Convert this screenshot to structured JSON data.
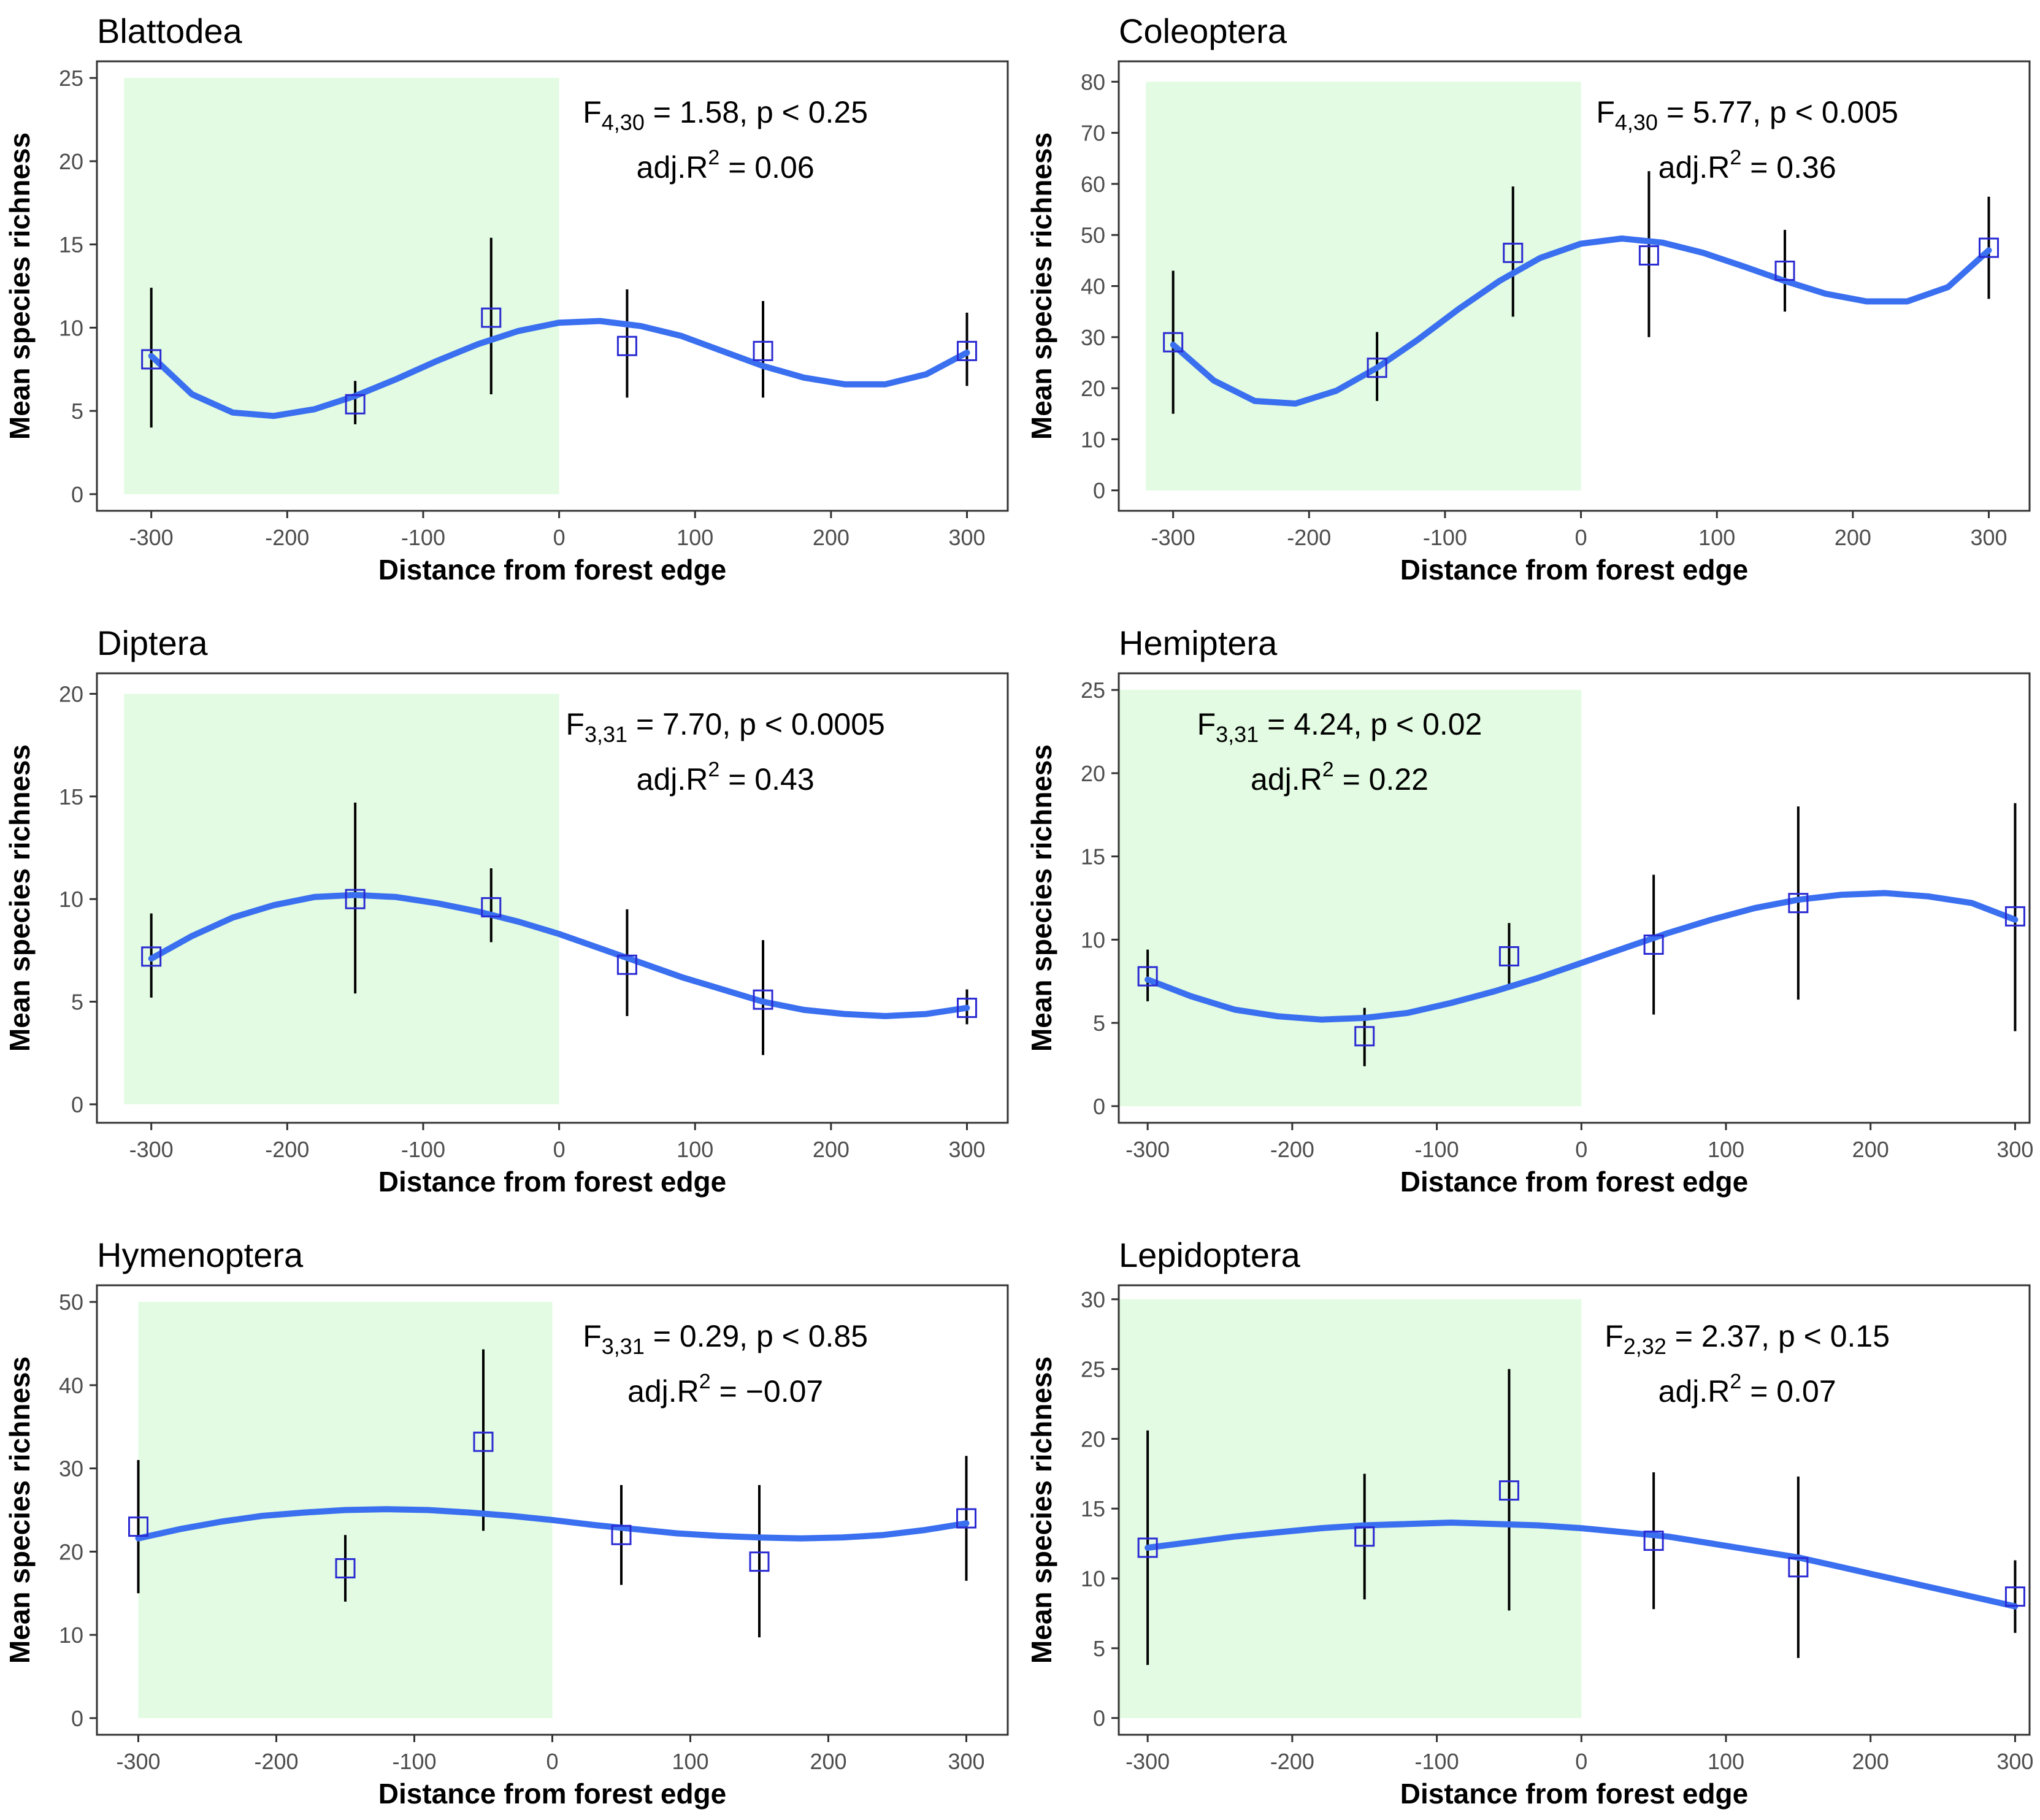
{
  "figure": {
    "x_label": "Distance from forest edge",
    "y_label": "Mean species richness"
  },
  "chart_data": [
    {
      "type": "scatter",
      "title": "Blattodea",
      "xlabel": "Distance from forest edge",
      "ylabel": "Mean species richness",
      "xlim": [
        -340,
        330
      ],
      "ylim": [
        -1,
        26
      ],
      "x_ticks": [
        -300,
        -200,
        -100,
        0,
        100,
        200,
        300
      ],
      "y_ticks": [
        0,
        5,
        10,
        15,
        20,
        25
      ],
      "shade_x": [
        -320,
        0
      ],
      "shade_y": [
        0,
        25
      ],
      "points": [
        {
          "x": -300,
          "y": 8.1,
          "lo": 4.0,
          "hi": 12.4
        },
        {
          "x": -150,
          "y": 5.4,
          "lo": 4.2,
          "hi": 6.8
        },
        {
          "x": -50,
          "y": 10.6,
          "lo": 6.0,
          "hi": 15.4
        },
        {
          "x": 50,
          "y": 8.9,
          "lo": 5.8,
          "hi": 12.3
        },
        {
          "x": 150,
          "y": 8.6,
          "lo": 5.8,
          "hi": 11.6
        },
        {
          "x": 300,
          "y": 8.6,
          "lo": 6.5,
          "hi": 10.9
        }
      ],
      "fit": [
        {
          "x": -300,
          "y": 8.3
        },
        {
          "x": -270,
          "y": 6.0
        },
        {
          "x": -240,
          "y": 4.9
        },
        {
          "x": -210,
          "y": 4.7
        },
        {
          "x": -180,
          "y": 5.1
        },
        {
          "x": -150,
          "y": 5.9
        },
        {
          "x": -120,
          "y": 6.9
        },
        {
          "x": -90,
          "y": 8.0
        },
        {
          "x": -60,
          "y": 9.0
        },
        {
          "x": -30,
          "y": 9.8
        },
        {
          "x": 0,
          "y": 10.3
        },
        {
          "x": 30,
          "y": 10.4
        },
        {
          "x": 60,
          "y": 10.1
        },
        {
          "x": 90,
          "y": 9.5
        },
        {
          "x": 120,
          "y": 8.6
        },
        {
          "x": 150,
          "y": 7.7
        },
        {
          "x": 180,
          "y": 7.0
        },
        {
          "x": 210,
          "y": 6.6
        },
        {
          "x": 240,
          "y": 6.6
        },
        {
          "x": 270,
          "y": 7.2
        },
        {
          "x": 300,
          "y": 8.5
        }
      ],
      "stat_line1": {
        "pre": "F",
        "sub": "4,30",
        "post": " = 1.58, p < 0.25"
      },
      "stat_line2": {
        "pre": "adj.R",
        "sup": "2",
        "post": " = 0.06"
      }
    },
    {
      "type": "scatter",
      "title": "Coleoptera",
      "xlabel": "Distance from forest edge",
      "ylabel": "Mean species richness",
      "xlim": [
        -340,
        330
      ],
      "ylim": [
        -4,
        84
      ],
      "x_ticks": [
        -300,
        -200,
        -100,
        0,
        100,
        200,
        300
      ],
      "y_ticks": [
        0,
        10,
        20,
        30,
        40,
        50,
        60,
        70,
        80
      ],
      "shade_x": [
        -320,
        0
      ],
      "shade_y": [
        0,
        80
      ],
      "points": [
        {
          "x": -300,
          "y": 29,
          "lo": 15,
          "hi": 43
        },
        {
          "x": -150,
          "y": 24,
          "lo": 17.5,
          "hi": 31
        },
        {
          "x": -50,
          "y": 46.5,
          "lo": 34,
          "hi": 59.5
        },
        {
          "x": 50,
          "y": 46,
          "lo": 30,
          "hi": 62.5
        },
        {
          "x": 150,
          "y": 43,
          "lo": 35,
          "hi": 51
        },
        {
          "x": 300,
          "y": 47.5,
          "lo": 37.5,
          "hi": 57.5
        }
      ],
      "fit": [
        {
          "x": -300,
          "y": 28.5
        },
        {
          "x": -270,
          "y": 21.5
        },
        {
          "x": -240,
          "y": 17.5
        },
        {
          "x": -210,
          "y": 17.0
        },
        {
          "x": -180,
          "y": 19.5
        },
        {
          "x": -150,
          "y": 24.0
        },
        {
          "x": -120,
          "y": 29.5
        },
        {
          "x": -90,
          "y": 35.5
        },
        {
          "x": -60,
          "y": 41.0
        },
        {
          "x": -30,
          "y": 45.5
        },
        {
          "x": 0,
          "y": 48.3
        },
        {
          "x": 30,
          "y": 49.3
        },
        {
          "x": 60,
          "y": 48.5
        },
        {
          "x": 90,
          "y": 46.5
        },
        {
          "x": 120,
          "y": 43.8
        },
        {
          "x": 150,
          "y": 41.0
        },
        {
          "x": 180,
          "y": 38.5
        },
        {
          "x": 210,
          "y": 37.0
        },
        {
          "x": 240,
          "y": 37.0
        },
        {
          "x": 270,
          "y": 39.8
        },
        {
          "x": 300,
          "y": 47.0
        }
      ],
      "stat_line1": {
        "pre": "F",
        "sub": "4,30",
        "post": " = 5.77, p < 0.005"
      },
      "stat_line2": {
        "pre": "adj.R",
        "sup": "2",
        "post": " = 0.36"
      }
    },
    {
      "type": "scatter",
      "title": "Diptera",
      "xlabel": "Distance from forest edge",
      "ylabel": "Mean species richness",
      "xlim": [
        -340,
        330
      ],
      "ylim": [
        -0.9,
        21
      ],
      "x_ticks": [
        -300,
        -200,
        -100,
        0,
        100,
        200,
        300
      ],
      "y_ticks": [
        0,
        5,
        10,
        15,
        20
      ],
      "shade_x": [
        -320,
        0
      ],
      "shade_y": [
        0,
        20
      ],
      "points": [
        {
          "x": -300,
          "y": 7.2,
          "lo": 5.2,
          "hi": 9.3
        },
        {
          "x": -150,
          "y": 10.0,
          "lo": 5.4,
          "hi": 14.7
        },
        {
          "x": -50,
          "y": 9.6,
          "lo": 7.9,
          "hi": 11.5
        },
        {
          "x": 50,
          "y": 6.8,
          "lo": 4.3,
          "hi": 9.5
        },
        {
          "x": 150,
          "y": 5.1,
          "lo": 2.4,
          "hi": 8.0
        },
        {
          "x": 300,
          "y": 4.7,
          "lo": 3.9,
          "hi": 5.6
        }
      ],
      "fit": [
        {
          "x": -300,
          "y": 7.1
        },
        {
          "x": -270,
          "y": 8.2
        },
        {
          "x": -240,
          "y": 9.1
        },
        {
          "x": -210,
          "y": 9.7
        },
        {
          "x": -180,
          "y": 10.1
        },
        {
          "x": -150,
          "y": 10.2
        },
        {
          "x": -120,
          "y": 10.1
        },
        {
          "x": -90,
          "y": 9.8
        },
        {
          "x": -60,
          "y": 9.4
        },
        {
          "x": -30,
          "y": 8.9
        },
        {
          "x": 0,
          "y": 8.3
        },
        {
          "x": 30,
          "y": 7.6
        },
        {
          "x": 60,
          "y": 6.9
        },
        {
          "x": 90,
          "y": 6.2
        },
        {
          "x": 120,
          "y": 5.6
        },
        {
          "x": 150,
          "y": 5.0
        },
        {
          "x": 180,
          "y": 4.6
        },
        {
          "x": 210,
          "y": 4.4
        },
        {
          "x": 240,
          "y": 4.3
        },
        {
          "x": 270,
          "y": 4.4
        },
        {
          "x": 300,
          "y": 4.7
        }
      ],
      "stat_line1": {
        "pre": "F",
        "sub": "3,31",
        "post": " = 7.70, p < 0.0005"
      },
      "stat_line2": {
        "pre": "adj.R",
        "sup": "2",
        "post": " = 0.43"
      }
    },
    {
      "type": "scatter",
      "title": "Hemiptera",
      "xlabel": "Distance from forest edge",
      "ylabel": "Mean species richness",
      "xlim": [
        -320,
        310
      ],
      "ylim": [
        -1,
        26
      ],
      "x_ticks": [
        -300,
        -200,
        -100,
        0,
        100,
        200,
        300
      ],
      "y_ticks": [
        0,
        5,
        10,
        15,
        20,
        25
      ],
      "shade_x": [
        -320,
        0
      ],
      "shade_y": [
        0,
        25
      ],
      "points": [
        {
          "x": -300,
          "y": 7.8,
          "lo": 6.3,
          "hi": 9.4
        },
        {
          "x": -150,
          "y": 4.2,
          "lo": 2.4,
          "hi": 5.9
        },
        {
          "x": -50,
          "y": 9.0,
          "lo": 7.0,
          "hi": 11.0
        },
        {
          "x": 50,
          "y": 9.7,
          "lo": 5.5,
          "hi": 13.9
        },
        {
          "x": 150,
          "y": 12.2,
          "lo": 6.4,
          "hi": 18.0
        },
        {
          "x": 300,
          "y": 11.4,
          "lo": 4.5,
          "hi": 18.2
        }
      ],
      "fit": [
        {
          "x": -300,
          "y": 7.6
        },
        {
          "x": -270,
          "y": 6.6
        },
        {
          "x": -240,
          "y": 5.8
        },
        {
          "x": -210,
          "y": 5.4
        },
        {
          "x": -180,
          "y": 5.2
        },
        {
          "x": -150,
          "y": 5.3
        },
        {
          "x": -120,
          "y": 5.6
        },
        {
          "x": -90,
          "y": 6.2
        },
        {
          "x": -60,
          "y": 6.9
        },
        {
          "x": -30,
          "y": 7.7
        },
        {
          "x": 0,
          "y": 8.6
        },
        {
          "x": 30,
          "y": 9.5
        },
        {
          "x": 60,
          "y": 10.4
        },
        {
          "x": 90,
          "y": 11.2
        },
        {
          "x": 120,
          "y": 11.9
        },
        {
          "x": 150,
          "y": 12.4
        },
        {
          "x": 180,
          "y": 12.7
        },
        {
          "x": 210,
          "y": 12.8
        },
        {
          "x": 240,
          "y": 12.6
        },
        {
          "x": 270,
          "y": 12.2
        },
        {
          "x": 300,
          "y": 11.2
        }
      ],
      "stat_line1": {
        "pre": "F",
        "sub": "3,31",
        "post": " = 4.24, p < 0.02"
      },
      "stat_line2": {
        "pre": "adj.R",
        "sup": "2",
        "post": " = 0.22"
      }
    },
    {
      "type": "scatter",
      "title": "Hymenoptera",
      "xlabel": "Distance from forest edge",
      "ylabel": "Mean species richness",
      "xlim": [
        -330,
        330
      ],
      "ylim": [
        -2,
        52
      ],
      "x_ticks": [
        -300,
        -200,
        -100,
        0,
        100,
        200,
        300
      ],
      "y_ticks": [
        0,
        10,
        20,
        30,
        40,
        50
      ],
      "shade_x": [
        -300,
        0
      ],
      "shade_y": [
        0,
        50
      ],
      "points": [
        {
          "x": -300,
          "y": 23.0,
          "lo": 15.0,
          "hi": 31.0
        },
        {
          "x": -150,
          "y": 18.0,
          "lo": 14.0,
          "hi": 22.0
        },
        {
          "x": -50,
          "y": 33.2,
          "lo": 22.5,
          "hi": 44.3
        },
        {
          "x": 50,
          "y": 22.0,
          "lo": 16.0,
          "hi": 28.0
        },
        {
          "x": 150,
          "y": 18.8,
          "lo": 9.7,
          "hi": 28.0
        },
        {
          "x": 300,
          "y": 24.0,
          "lo": 16.5,
          "hi": 31.5
        }
      ],
      "fit": [
        {
          "x": -300,
          "y": 21.6
        },
        {
          "x": -270,
          "y": 22.7
        },
        {
          "x": -240,
          "y": 23.6
        },
        {
          "x": -210,
          "y": 24.3
        },
        {
          "x": -180,
          "y": 24.7
        },
        {
          "x": -150,
          "y": 25.0
        },
        {
          "x": -120,
          "y": 25.1
        },
        {
          "x": -90,
          "y": 25.0
        },
        {
          "x": -60,
          "y": 24.7
        },
        {
          "x": -30,
          "y": 24.3
        },
        {
          "x": 0,
          "y": 23.8
        },
        {
          "x": 30,
          "y": 23.2
        },
        {
          "x": 60,
          "y": 22.7
        },
        {
          "x": 90,
          "y": 22.2
        },
        {
          "x": 120,
          "y": 21.9
        },
        {
          "x": 150,
          "y": 21.7
        },
        {
          "x": 180,
          "y": 21.6
        },
        {
          "x": 210,
          "y": 21.7
        },
        {
          "x": 240,
          "y": 22.0
        },
        {
          "x": 270,
          "y": 22.6
        },
        {
          "x": 300,
          "y": 23.4
        }
      ],
      "stat_line1": {
        "pre": "F",
        "sub": "3,31",
        "post": " = 0.29, p < 0.85"
      },
      "stat_line2": {
        "pre": "adj.R",
        "sup": "2",
        "post": " = −0.07"
      }
    },
    {
      "type": "scatter",
      "title": "Lepidoptera",
      "xlabel": "Distance from forest edge",
      "ylabel": "Mean species richness",
      "xlim": [
        -320,
        310
      ],
      "ylim": [
        -1.2,
        31
      ],
      "x_ticks": [
        -300,
        -200,
        -100,
        0,
        100,
        200,
        300
      ],
      "y_ticks": [
        0,
        5,
        10,
        15,
        20,
        25,
        30
      ],
      "shade_x": [
        -320,
        0
      ],
      "shade_y": [
        0,
        30
      ],
      "points": [
        {
          "x": -300,
          "y": 12.2,
          "lo": 3.8,
          "hi": 20.6
        },
        {
          "x": -150,
          "y": 13.0,
          "lo": 8.5,
          "hi": 17.5
        },
        {
          "x": -50,
          "y": 16.3,
          "lo": 7.7,
          "hi": 25.0
        },
        {
          "x": 50,
          "y": 12.7,
          "lo": 7.8,
          "hi": 17.6
        },
        {
          "x": 150,
          "y": 10.8,
          "lo": 4.3,
          "hi": 17.3
        },
        {
          "x": 300,
          "y": 8.7,
          "lo": 6.1,
          "hi": 11.3
        }
      ],
      "fit": [
        {
          "x": -300,
          "y": 12.2
        },
        {
          "x": -270,
          "y": 12.6
        },
        {
          "x": -240,
          "y": 13.0
        },
        {
          "x": -210,
          "y": 13.3
        },
        {
          "x": -180,
          "y": 13.6
        },
        {
          "x": -150,
          "y": 13.8
        },
        {
          "x": -120,
          "y": 13.9
        },
        {
          "x": -90,
          "y": 14.0
        },
        {
          "x": -60,
          "y": 13.9
        },
        {
          "x": -30,
          "y": 13.8
        },
        {
          "x": 0,
          "y": 13.6
        },
        {
          "x": 30,
          "y": 13.3
        },
        {
          "x": 60,
          "y": 13.0
        },
        {
          "x": 90,
          "y": 12.5
        },
        {
          "x": 120,
          "y": 12.0
        },
        {
          "x": 150,
          "y": 11.5
        },
        {
          "x": 180,
          "y": 10.8
        },
        {
          "x": 210,
          "y": 10.1
        },
        {
          "x": 240,
          "y": 9.4
        },
        {
          "x": 270,
          "y": 8.7
        },
        {
          "x": 300,
          "y": 8.0
        }
      ],
      "stat_line1": {
        "pre": "F",
        "sub": "2,32",
        "post": " = 2.37, p < 0.15"
      },
      "stat_line2": {
        "pre": "adj.R",
        "sup": "2",
        "post": " = 0.07"
      }
    }
  ]
}
